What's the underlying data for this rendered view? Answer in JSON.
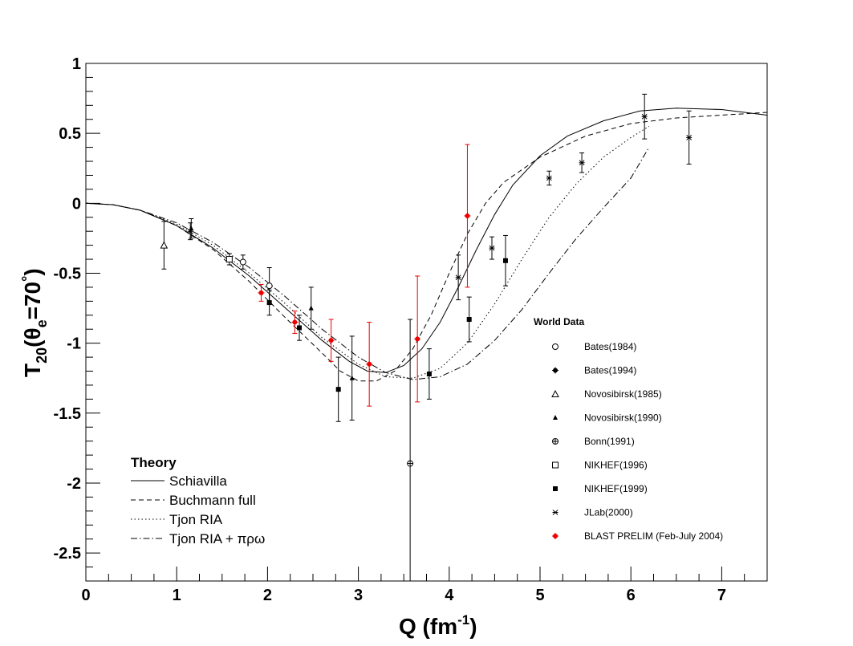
{
  "chart_data": {
    "type": "scatter",
    "xlabel": {
      "main": "Q (fm",
      "sup": "-1",
      "close": ")"
    },
    "ylabel": {
      "T": "T",
      "sub": "20",
      "rest1": "(θ",
      "sub2": "e",
      "rest2": "=70",
      "deg": "°",
      "close": ")"
    },
    "xlim": [
      0,
      7.5
    ],
    "ylim": [
      -2.7,
      1
    ],
    "x_ticks": [
      "0",
      "1",
      "2",
      "3",
      "4",
      "5",
      "6",
      "7"
    ],
    "y_ticks": [
      "1",
      "0.5",
      "0",
      "-0.5",
      "-1",
      "-1.5",
      "-2",
      "-2.5"
    ],
    "x_tick_values": [
      0,
      1,
      2,
      3,
      4,
      5,
      6,
      7
    ],
    "y_tick_values": [
      1,
      0.5,
      0,
      -0.5,
      -1,
      -1.5,
      -2,
      -2.5
    ],
    "data_legend_title": "World Data",
    "theory_legend_title": "Theory",
    "theory": [
      {
        "name": "Schiavilla",
        "style": "solid",
        "points": [
          [
            0,
            0
          ],
          [
            0.3,
            -0.01
          ],
          [
            0.6,
            -0.05
          ],
          [
            1.0,
            -0.16
          ],
          [
            1.4,
            -0.32
          ],
          [
            1.8,
            -0.52
          ],
          [
            2.2,
            -0.75
          ],
          [
            2.6,
            -0.98
          ],
          [
            2.9,
            -1.13
          ],
          [
            3.1,
            -1.2
          ],
          [
            3.3,
            -1.21
          ],
          [
            3.5,
            -1.16
          ],
          [
            3.7,
            -1.04
          ],
          [
            3.9,
            -0.85
          ],
          [
            4.1,
            -0.6
          ],
          [
            4.3,
            -0.33
          ],
          [
            4.5,
            -0.08
          ],
          [
            4.7,
            0.13
          ],
          [
            5.0,
            0.34
          ],
          [
            5.3,
            0.48
          ],
          [
            5.7,
            0.59
          ],
          [
            6.1,
            0.66
          ],
          [
            6.5,
            0.68
          ],
          [
            7.0,
            0.67
          ],
          [
            7.5,
            0.63
          ]
        ]
      },
      {
        "name": "Buchmann full",
        "style": "dash",
        "points": [
          [
            0,
            0
          ],
          [
            0.3,
            -0.01
          ],
          [
            0.6,
            -0.05
          ],
          [
            1.0,
            -0.16
          ],
          [
            1.4,
            -0.33
          ],
          [
            1.8,
            -0.56
          ],
          [
            2.2,
            -0.82
          ],
          [
            2.6,
            -1.07
          ],
          [
            2.8,
            -1.2
          ],
          [
            3.0,
            -1.27
          ],
          [
            3.2,
            -1.27
          ],
          [
            3.4,
            -1.2
          ],
          [
            3.6,
            -1.04
          ],
          [
            3.8,
            -0.8
          ],
          [
            4.0,
            -0.5
          ],
          [
            4.2,
            -0.22
          ],
          [
            4.4,
            0.0
          ],
          [
            4.6,
            0.15
          ],
          [
            5.0,
            0.33
          ],
          [
            5.5,
            0.48
          ],
          [
            6.0,
            0.57
          ],
          [
            6.5,
            0.61
          ],
          [
            7.0,
            0.63
          ],
          [
            7.5,
            0.65
          ]
        ]
      },
      {
        "name": "Tjon RIA",
        "style": "dot",
        "points": [
          [
            0,
            0
          ],
          [
            0.3,
            -0.01
          ],
          [
            0.6,
            -0.05
          ],
          [
            1.0,
            -0.15
          ],
          [
            1.4,
            -0.3
          ],
          [
            1.8,
            -0.5
          ],
          [
            2.2,
            -0.72
          ],
          [
            2.6,
            -0.96
          ],
          [
            3.0,
            -1.15
          ],
          [
            3.3,
            -1.24
          ],
          [
            3.6,
            -1.25
          ],
          [
            3.9,
            -1.18
          ],
          [
            4.2,
            -1.0
          ],
          [
            4.5,
            -0.72
          ],
          [
            4.8,
            -0.4
          ],
          [
            5.1,
            -0.1
          ],
          [
            5.4,
            0.14
          ],
          [
            5.7,
            0.33
          ],
          [
            6.0,
            0.47
          ],
          [
            6.2,
            0.55
          ]
        ]
      },
      {
        "name": "Tjon RIA + πρω",
        "style": "dashdot",
        "points": [
          [
            0,
            0
          ],
          [
            0.3,
            -0.01
          ],
          [
            0.6,
            -0.05
          ],
          [
            1.0,
            -0.14
          ],
          [
            1.4,
            -0.28
          ],
          [
            1.8,
            -0.46
          ],
          [
            2.2,
            -0.67
          ],
          [
            2.6,
            -0.9
          ],
          [
            3.0,
            -1.1
          ],
          [
            3.3,
            -1.21
          ],
          [
            3.6,
            -1.26
          ],
          [
            3.9,
            -1.24
          ],
          [
            4.2,
            -1.15
          ],
          [
            4.5,
            -0.98
          ],
          [
            4.8,
            -0.76
          ],
          [
            5.1,
            -0.5
          ],
          [
            5.4,
            -0.25
          ],
          [
            5.7,
            -0.03
          ],
          [
            6.0,
            0.18
          ],
          [
            6.2,
            0.4
          ]
        ]
      }
    ],
    "series": [
      {
        "name": "Bates(1984)",
        "marker": "circle-open",
        "color": "#000000",
        "points": [
          [
            1.73,
            -0.42,
            0.05
          ],
          [
            2.02,
            -0.59,
            0.13
          ]
        ]
      },
      {
        "name": "Bates(1994)",
        "marker": "star-filled",
        "color": "#000000",
        "points": []
      },
      {
        "name": "Novosibirsk(1985)",
        "marker": "triangle-open",
        "color": "#000000",
        "points": [
          [
            0.86,
            -0.3,
            0.17
          ]
        ]
      },
      {
        "name": "Novosibirsk(1990)",
        "marker": "triangle-filled",
        "color": "#000000",
        "points": [
          [
            1.16,
            -0.18,
            0.07
          ],
          [
            2.48,
            -0.75,
            0.15
          ],
          [
            2.93,
            -1.25,
            0.3
          ]
        ]
      },
      {
        "name": "Bonn(1991)",
        "marker": "cross-open",
        "color": "#000000",
        "points": [
          [
            3.57,
            -1.86,
            1.03
          ]
        ]
      },
      {
        "name": "NIKHEF(1996)",
        "marker": "square-open",
        "color": "#000000",
        "points": [
          [
            1.58,
            -0.4,
            0.04
          ]
        ]
      },
      {
        "name": "NIKHEF(1999)",
        "marker": "square-filled",
        "color": "#000000",
        "points": [
          [
            2.02,
            -0.71,
            0.09
          ],
          [
            2.35,
            -0.89,
            0.09
          ],
          [
            2.78,
            -1.33,
            0.23
          ],
          [
            3.78,
            -1.22,
            0.18
          ],
          [
            4.22,
            -0.83,
            0.16
          ],
          [
            4.62,
            -0.41,
            0.18
          ]
        ]
      },
      {
        "name": "JLab(2000)",
        "marker": "x-star",
        "color": "#000000",
        "points": [
          [
            1.15,
            -0.2,
            0.06
          ],
          [
            4.1,
            -0.53,
            0.16
          ],
          [
            4.47,
            -0.32,
            0.08
          ],
          [
            5.1,
            0.18,
            0.05
          ],
          [
            5.46,
            0.29,
            0.07
          ],
          [
            6.15,
            0.62,
            0.16
          ],
          [
            6.64,
            0.47,
            0.19
          ]
        ]
      },
      {
        "name": "BLAST PRELIM (Feb-July 2004)",
        "marker": "star-filled",
        "color": "#ee0000",
        "points": [
          [
            1.93,
            -0.64,
            0.06
          ],
          [
            2.3,
            -0.85,
            0.08
          ],
          [
            2.7,
            -0.98,
            0.15
          ],
          [
            3.12,
            -1.15,
            0.3
          ],
          [
            3.65,
            -0.97,
            0.45
          ],
          [
            4.2,
            -0.09,
            0.51
          ]
        ]
      }
    ]
  }
}
